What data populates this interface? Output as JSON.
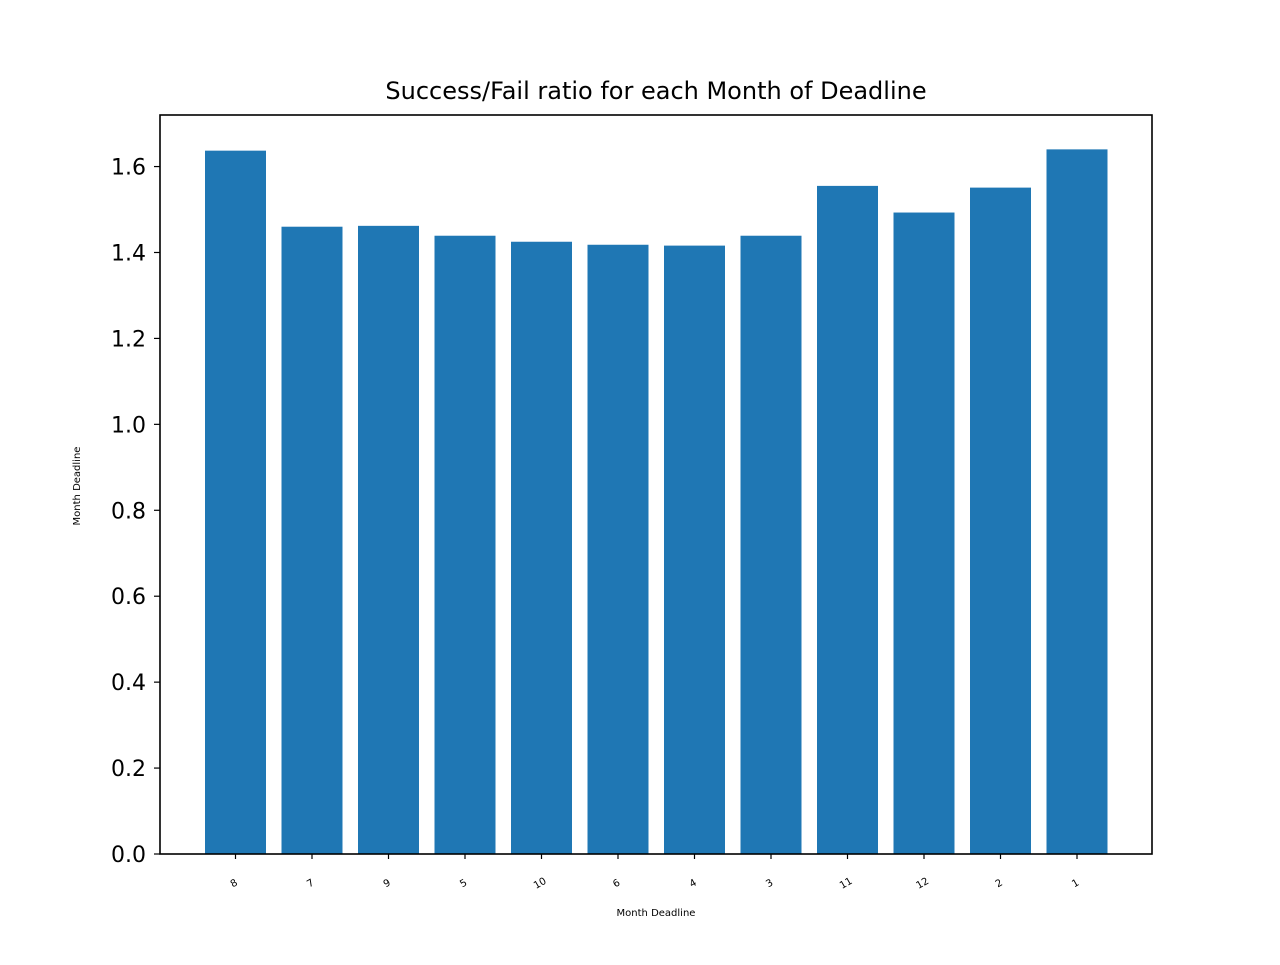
{
  "chart_data": {
    "type": "bar",
    "title": "Success/Fail ratio for each Month of Deadline",
    "xlabel": "Month Deadline",
    "ylabel": "Month Deadline",
    "categories": [
      "8",
      "7",
      "9",
      "5",
      "10",
      "6",
      "4",
      "3",
      "11",
      "12",
      "2",
      "1"
    ],
    "values": [
      1.637,
      1.46,
      1.462,
      1.439,
      1.425,
      1.418,
      1.416,
      1.439,
      1.555,
      1.493,
      1.551,
      1.64
    ],
    "ylim": [
      0,
      1.72
    ],
    "yticks": [
      "0.0",
      "0.2",
      "0.4",
      "0.6",
      "0.8",
      "1.0",
      "1.2",
      "1.4",
      "1.6"
    ],
    "grid": false,
    "bar_color": "#1f77b4"
  }
}
